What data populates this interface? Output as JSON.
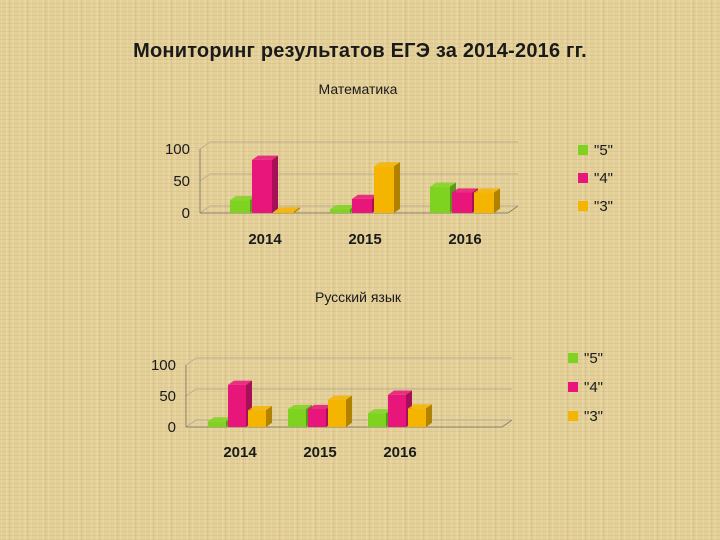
{
  "slide": {
    "title": "Мониторинг результатов ЕГЭ  за 2014-2016 гг."
  },
  "colors": {
    "5": "#7ed321",
    "4": "#e8157a",
    "3": "#f5b400"
  },
  "chart_data": [
    {
      "type": "bar",
      "title": "Математика",
      "categories": [
        "2014",
        "2015",
        "2016"
      ],
      "ylim": [
        0,
        100
      ],
      "yticks": [
        "0",
        "50",
        "100"
      ],
      "legend_position": "right",
      "series": [
        {
          "name": "\"5\"",
          "values": [
            20,
            6,
            41
          ]
        },
        {
          "name": "\"4\"",
          "values": [
            83,
            22,
            32
          ]
        },
        {
          "name": "\"3\"",
          "values": [
            1,
            73,
            32
          ]
        }
      ]
    },
    {
      "type": "bar",
      "title": "Русский язык",
      "categories": [
        "2014",
        "2015",
        "2016"
      ],
      "ylim": [
        0,
        100
      ],
      "yticks": [
        "0",
        "50",
        "100"
      ],
      "legend_position": "right",
      "series": [
        {
          "name": "\"5\"",
          "values": [
            9,
            29,
            22
          ]
        },
        {
          "name": "\"4\"",
          "values": [
            68,
            29,
            52
          ]
        },
        {
          "name": "\"3\"",
          "values": [
            27,
            44,
            30
          ]
        }
      ]
    }
  ]
}
